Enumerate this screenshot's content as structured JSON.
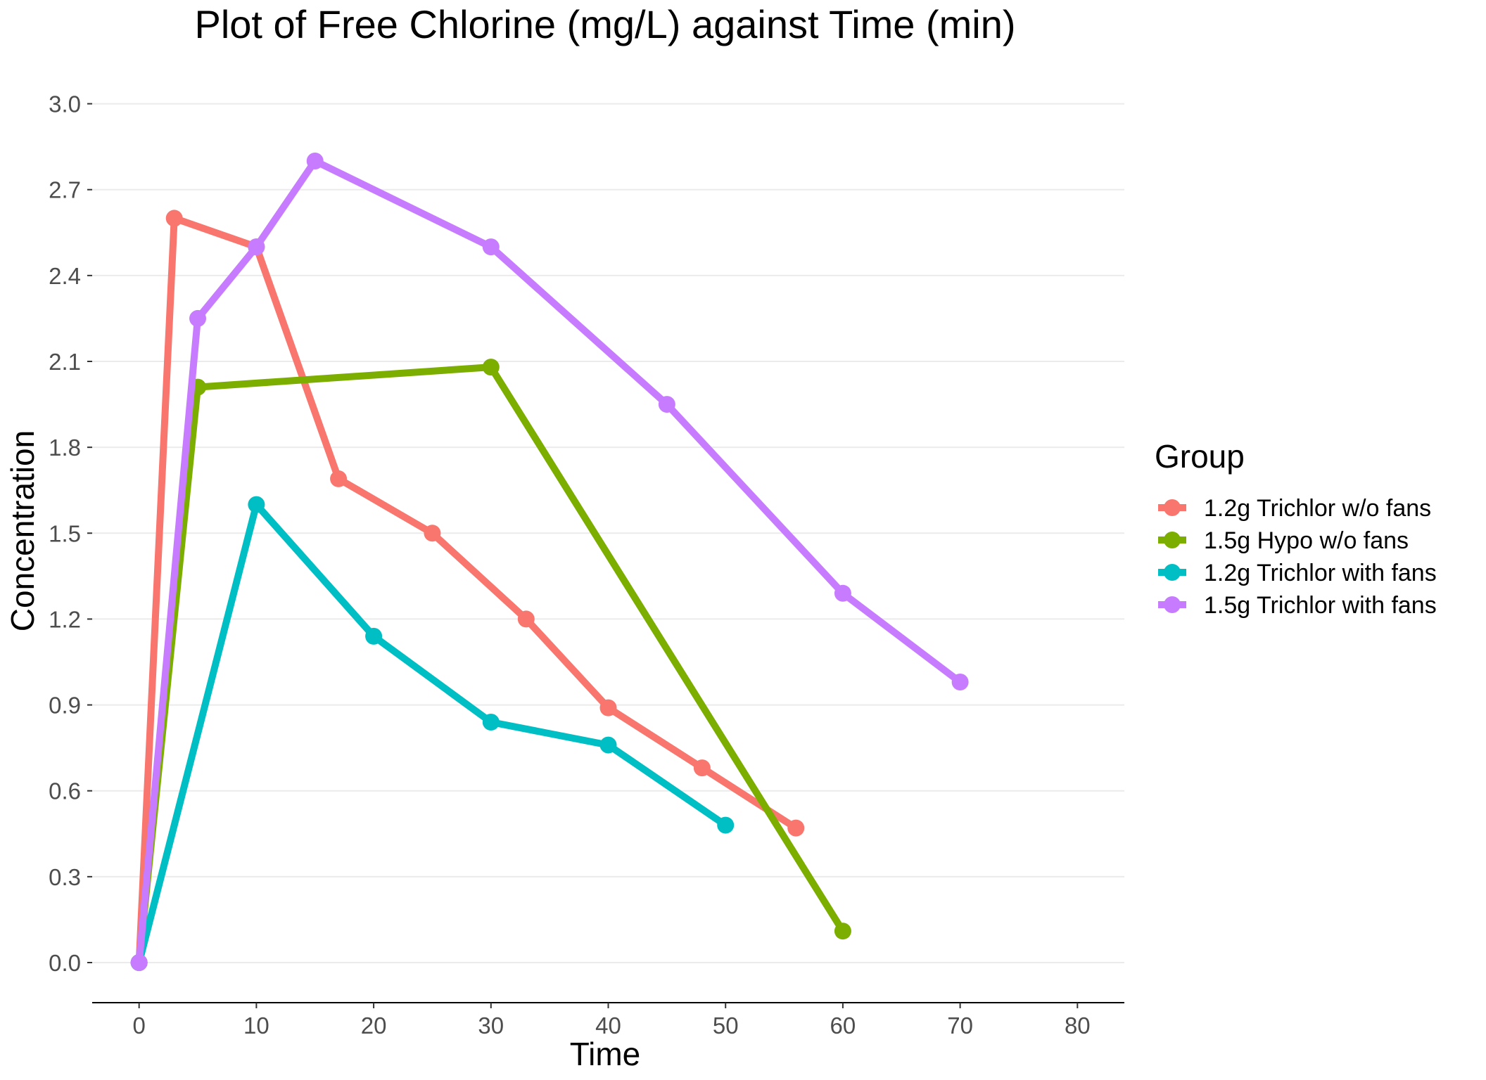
{
  "chart_data": {
    "type": "line",
    "title": "Plot of Free Chlorine (mg/L) against Time (min)",
    "xlabel": "Time",
    "ylabel": "Concentration",
    "xlim": [
      -4,
      84
    ],
    "ylim": [
      -0.14,
      3.08
    ],
    "x_ticks": [
      0,
      10,
      20,
      30,
      40,
      50,
      60,
      70,
      80
    ],
    "x_tick_labels": [
      "0",
      "10",
      "20",
      "30",
      "40",
      "50",
      "60",
      "70",
      "80"
    ],
    "y_ticks": [
      0.0,
      0.3,
      0.6,
      0.9,
      1.2,
      1.5,
      1.8,
      2.1,
      2.4,
      2.7,
      3.0
    ],
    "y_tick_labels": [
      "0.0",
      "0.3",
      "0.6",
      "0.9",
      "1.2",
      "1.5",
      "1.8",
      "2.1",
      "2.4",
      "2.7",
      "3.0"
    ],
    "grid": "horizontal",
    "legend_title": "Group",
    "legend_position": "right",
    "series": [
      {
        "name": "1.2g Trichlor w/o fans",
        "color": "#F8766D",
        "x": [
          0,
          3,
          10,
          17,
          25,
          33,
          40,
          48,
          56
        ],
        "y": [
          0.0,
          2.6,
          2.5,
          1.69,
          1.5,
          1.2,
          0.89,
          0.68,
          0.47
        ]
      },
      {
        "name": "1.5g Hypo w/o fans",
        "color": "#7CAE00",
        "x": [
          0,
          5,
          30,
          60
        ],
        "y": [
          0.0,
          2.01,
          2.08,
          0.11
        ]
      },
      {
        "name": "1.2g Trichlor with fans",
        "color": "#00BFC4",
        "x": [
          0,
          10,
          20,
          30,
          40,
          50
        ],
        "y": [
          0.0,
          1.6,
          1.14,
          0.84,
          0.76,
          0.48
        ]
      },
      {
        "name": "1.5g Trichlor with fans",
        "color": "#C77CFF",
        "x": [
          0,
          5,
          10,
          15,
          30,
          45,
          60,
          70
        ],
        "y": [
          0.0,
          2.25,
          2.5,
          2.8,
          2.5,
          1.95,
          1.29,
          0.98
        ]
      }
    ]
  }
}
